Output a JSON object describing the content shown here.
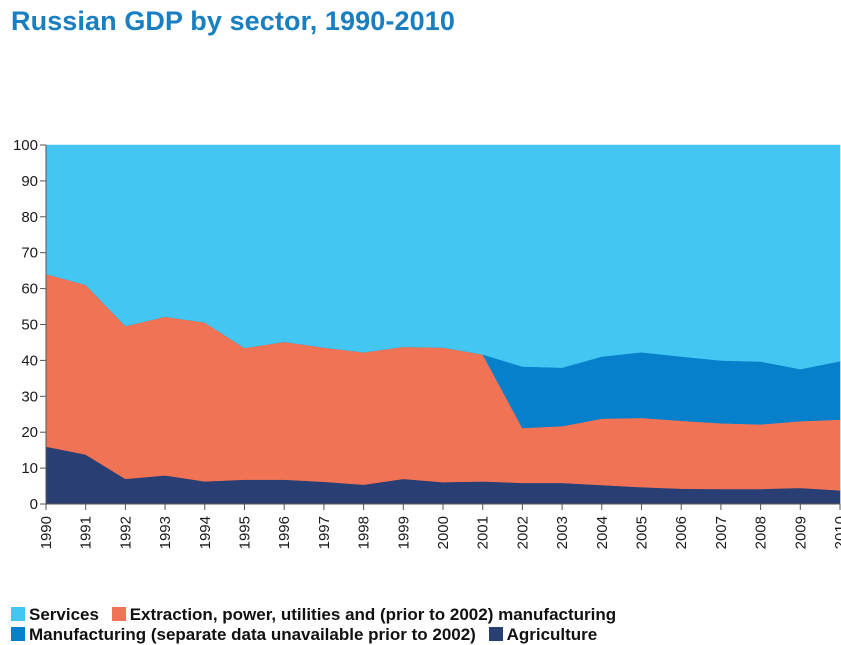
{
  "title": "Russian GDP by sector, 1990-2010",
  "colors": {
    "services": "#44c6f3",
    "extraction": "#f07355",
    "manufacturing": "#0680cb",
    "agriculture": "#293f74"
  },
  "legend": {
    "services": "Services",
    "extraction": "Extraction, power, utilities and (prior to 2002) manufacturing",
    "manufacturing": "Manufacturing (separate data unavailable prior to 2002)",
    "agriculture": "Agriculture"
  },
  "chart_data": {
    "type": "area",
    "stacked": true,
    "title": "Russian GDP by sector, 1990-2010",
    "x": [
      1990,
      1991,
      1992,
      1993,
      1994,
      1995,
      1996,
      1997,
      1998,
      1999,
      2000,
      2001,
      2002,
      2003,
      2004,
      2005,
      2006,
      2007,
      2008,
      2009,
      2010
    ],
    "ylim": [
      0,
      100
    ],
    "yticks": [
      0,
      10,
      20,
      30,
      40,
      50,
      60,
      70,
      80,
      90,
      100
    ],
    "series": [
      {
        "name": "Agriculture",
        "key": "agriculture",
        "values": [
          16.0,
          13.8,
          7.0,
          8.0,
          6.3,
          6.8,
          6.8,
          6.2,
          5.4,
          7.0,
          6.1,
          6.3,
          5.9,
          5.9,
          5.3,
          4.7,
          4.3,
          4.2,
          4.2,
          4.5,
          3.8
        ]
      },
      {
        "name": "Extraction, power, utilities and (prior to 2002) manufacturing",
        "key": "extraction",
        "values": [
          48.1,
          47.3,
          42.6,
          44.2,
          44.3,
          36.7,
          38.4,
          37.4,
          36.9,
          36.8,
          37.5,
          35.4,
          15.3,
          15.8,
          18.5,
          19.3,
          18.9,
          18.3,
          18.0,
          18.6,
          19.7
        ]
      },
      {
        "name": "Manufacturing (separate data unavailable prior to 2002)",
        "key": "manufacturing",
        "values": [
          0,
          0,
          0,
          0,
          0,
          0,
          0,
          0,
          0,
          0,
          0,
          0,
          17.1,
          16.3,
          17.3,
          18.3,
          17.9,
          17.5,
          17.5,
          14.5,
          16.3
        ]
      },
      {
        "name": "Services",
        "key": "services",
        "values": [
          35.9,
          38.9,
          50.4,
          47.8,
          49.4,
          56.5,
          54.8,
          56.4,
          57.7,
          56.2,
          56.4,
          58.3,
          61.7,
          62.0,
          58.9,
          57.7,
          58.9,
          60.0,
          60.3,
          62.4,
          60.2
        ]
      }
    ],
    "grid": false,
    "legend_position": "bottom"
  }
}
